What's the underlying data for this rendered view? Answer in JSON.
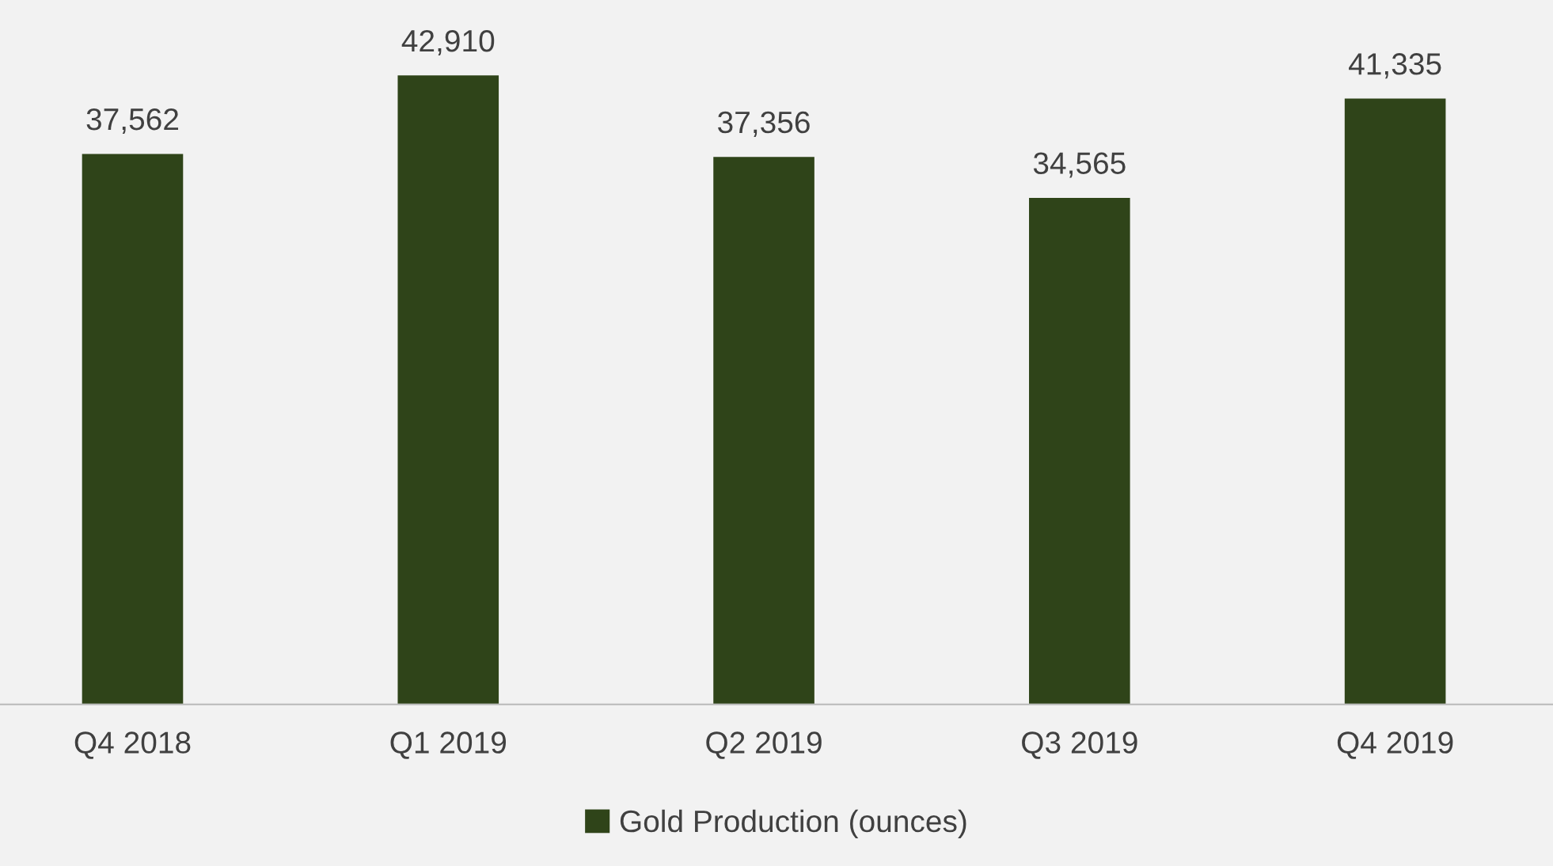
{
  "chart_data": {
    "type": "bar",
    "categories": [
      "Q4 2018",
      "Q1 2019",
      "Q2 2019",
      "Q3 2019",
      "Q4 2019"
    ],
    "series": [
      {
        "name": "Gold Production (ounces)",
        "color": "#2f4419",
        "values": [
          37562,
          42910,
          37356,
          34565,
          41335
        ],
        "value_labels": [
          "37,562",
          "42,910",
          "37,356",
          "34,565",
          "41,335"
        ]
      }
    ],
    "legend": "bottom"
  }
}
